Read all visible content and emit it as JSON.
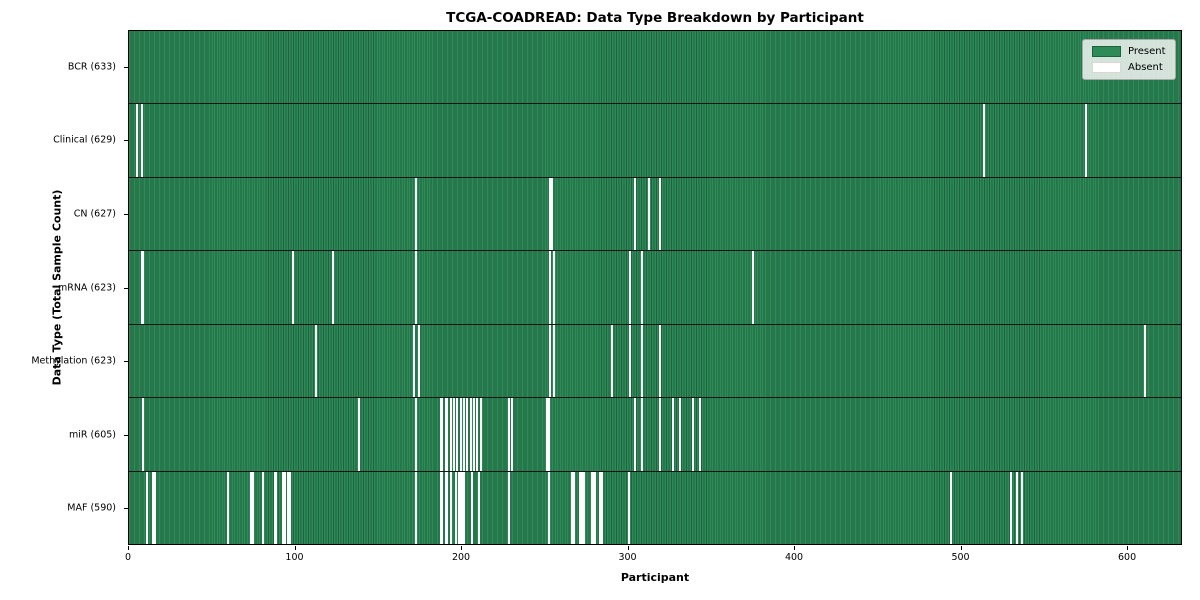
{
  "title": "TCGA-COADREAD: Data Type Breakdown by Participant",
  "xlabel": "Participant",
  "ylabel": "Data Type (Total Sample Count)",
  "legend": {
    "present_label": "Present",
    "absent_label": "Absent"
  },
  "colors": {
    "present": "#2e8b57",
    "present_edge": "#1d6340",
    "absent": "#ffffff",
    "separator": "#141414"
  },
  "chart_data": {
    "type": "heatmap",
    "title": "TCGA-COADREAD: Data Type Breakdown by Participant",
    "xlabel": "Participant",
    "ylabel": "Data Type (Total Sample Count)",
    "x_ticks": [
      0,
      100,
      200,
      300,
      400,
      500,
      600
    ],
    "x_max": 633,
    "total_participants": 633,
    "legend_entries": [
      "Present",
      "Absent"
    ],
    "legend_position": "upper right",
    "rows": [
      {
        "label": "BCR (633)",
        "data_type": "BCR",
        "sample_count": 633,
        "absent_participants": []
      },
      {
        "label": "Clinical (629)",
        "data_type": "Clinical",
        "sample_count": 629,
        "absent_participants": [
          4,
          7,
          514,
          575
        ]
      },
      {
        "label": "CN (627)",
        "data_type": "CN",
        "sample_count": 627,
        "absent_participants": [
          172,
          253,
          254,
          304,
          312,
          319
        ]
      },
      {
        "label": "mRNA (623)",
        "data_type": "mRNA",
        "sample_count": 623,
        "absent_participants": [
          7,
          8,
          98,
          122,
          172,
          253,
          255,
          301,
          308,
          375
        ]
      },
      {
        "label": "Methylation (623)",
        "data_type": "Methylation",
        "sample_count": 623,
        "absent_participants": [
          112,
          171,
          174,
          253,
          255,
          290,
          301,
          308,
          319,
          611
        ]
      },
      {
        "label": "miR (605)",
        "data_type": "miR",
        "sample_count": 605,
        "absent_participants": [
          8,
          138,
          172,
          187,
          188,
          190,
          191,
          193,
          195,
          197,
          199,
          201,
          203,
          205,
          207,
          209,
          211,
          228,
          230,
          251,
          252,
          304,
          308,
          319,
          327,
          331,
          339,
          343
        ]
      },
      {
        "label": "MAF (590)",
        "data_type": "MAF",
        "sample_count": 590,
        "absent_participants": [
          10,
          14,
          15,
          59,
          73,
          74,
          80,
          87,
          88,
          92,
          93,
          95,
          96,
          172,
          187,
          188,
          190,
          191,
          193,
          196,
          198,
          199,
          200,
          201,
          206,
          210,
          228,
          252,
          266,
          267,
          271,
          272,
          273,
          278,
          279,
          280,
          283,
          284,
          300,
          494,
          530,
          534,
          537
        ]
      }
    ]
  }
}
